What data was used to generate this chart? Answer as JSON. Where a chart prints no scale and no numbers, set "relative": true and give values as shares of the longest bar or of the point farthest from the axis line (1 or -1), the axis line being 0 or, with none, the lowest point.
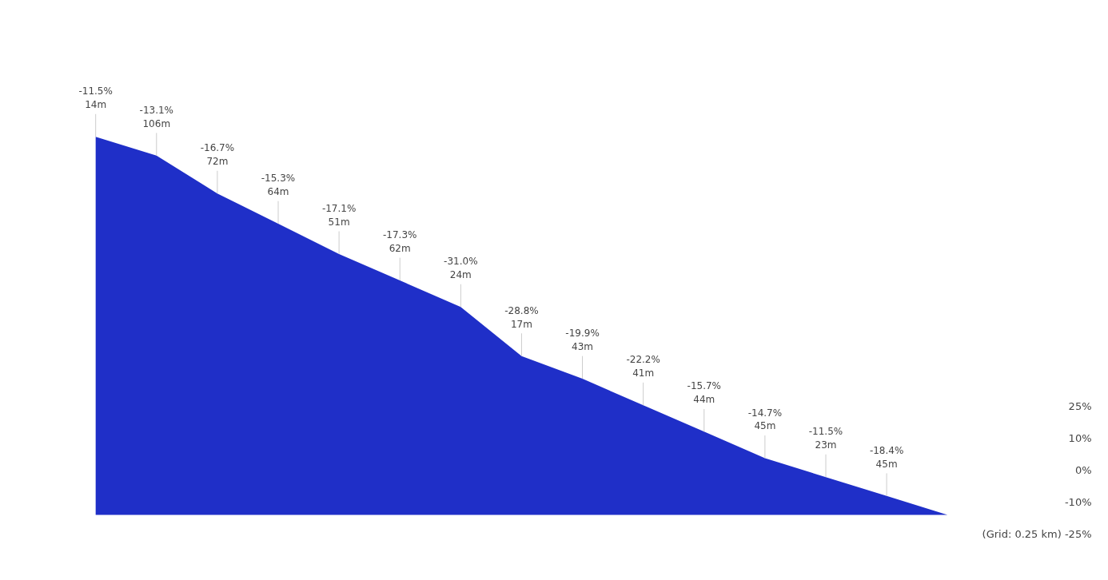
{
  "chart_data": {
    "type": "area",
    "relative": true,
    "categories": [
      null,
      null,
      null,
      null,
      null,
      null,
      null,
      null,
      null,
      null,
      null,
      null,
      null,
      null,
      null
    ],
    "series": [
      {
        "color": "#1f2fc8",
        "values": [
          1.0,
          0.95,
          0.85,
          0.77,
          0.69,
          0.62,
          0.55,
          0.42,
          0.36,
          0.29,
          0.22,
          0.15,
          0.1,
          0.05,
          0.0
        ]
      }
    ],
    "value_labels": [
      "-11.5%\n14m",
      "-13.1%\n106m",
      "-16.7%\n72m",
      "-15.3%\n64m",
      "-17.1%\n51m",
      "-17.3%\n62m",
      "-31.0%\n24m",
      "-28.8%\n17m",
      "-19.9%\n43m",
      "-22.2%\n41m",
      "-15.7%\n44m",
      "-14.7%\n45m",
      "-11.5%\n23m",
      "-18.4%\n45m",
      null
    ],
    "annotations": [
      "25%",
      "10%",
      "0%",
      "-10%",
      "(Grid: 0.25 km) -25%"
    ],
    "grid": false
  }
}
